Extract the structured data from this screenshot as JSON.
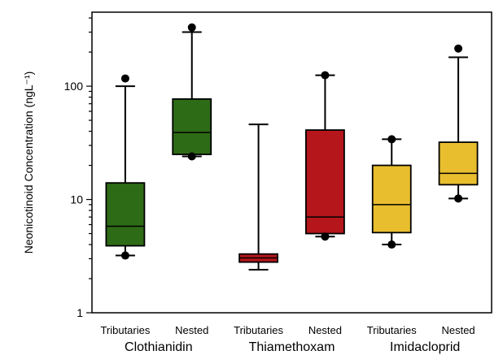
{
  "chart_data": {
    "type": "box",
    "ylabel": "Neonicotinoid Concentration (ngL⁻¹)",
    "yscale": "log",
    "ylim": [
      1,
      450
    ],
    "yticks": [
      {
        "value": 1,
        "label": "1"
      },
      {
        "value": 10,
        "label": "10"
      },
      {
        "value": 100,
        "label": "100"
      }
    ],
    "groups": [
      {
        "name": "Clothianidin",
        "color": "#2e6b17"
      },
      {
        "name": "Thiamethoxam",
        "color": "#b5161b"
      },
      {
        "name": "Imidacloprid",
        "color": "#e8be2f"
      }
    ],
    "boxes": [
      {
        "group": 0,
        "label": "Tributaries",
        "whisker_low": 3.2,
        "q1": 3.9,
        "median": 5.8,
        "q3": 14,
        "whisker_high": 100,
        "outliers": [
          3.2,
          117
        ]
      },
      {
        "group": 0,
        "label": "Nested",
        "whisker_low": 24,
        "q1": 25,
        "median": 39,
        "q3": 77,
        "whisker_high": 300,
        "outliers": [
          24,
          330
        ]
      },
      {
        "group": 1,
        "label": "Tributaries",
        "whisker_low": 2.4,
        "q1": 2.8,
        "median": 3.05,
        "q3": 3.3,
        "whisker_high": 46,
        "outliers": []
      },
      {
        "group": 1,
        "label": "Nested",
        "whisker_low": 4.7,
        "q1": 5.0,
        "median": 7.0,
        "q3": 41,
        "whisker_high": 125,
        "outliers": [
          4.7,
          125
        ]
      },
      {
        "group": 2,
        "label": "Tributaries",
        "whisker_low": 4.0,
        "q1": 5.1,
        "median": 9.0,
        "q3": 20,
        "whisker_high": 34,
        "outliers": [
          4.0,
          34
        ]
      },
      {
        "group": 2,
        "label": "Nested",
        "whisker_low": 10.2,
        "q1": 13.5,
        "median": 17,
        "q3": 32,
        "whisker_high": 180,
        "outliers": [
          10.2,
          215
        ]
      }
    ]
  }
}
